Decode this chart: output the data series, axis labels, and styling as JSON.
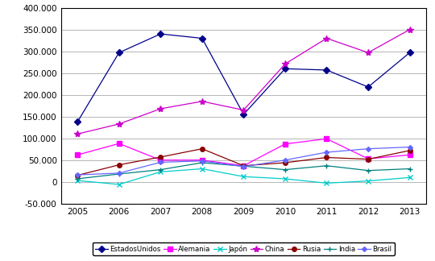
{
  "years": [
    2005,
    2006,
    2007,
    2008,
    2009,
    2010,
    2011,
    2012,
    2013
  ],
  "series": [
    {
      "name": "EstadosUnidos",
      "values": [
        138000,
        297000,
        340000,
        330000,
        155000,
        260000,
        257000,
        218000,
        297000
      ],
      "color": "#00008B",
      "marker": "D",
      "markersize": 4
    },
    {
      "name": "Alemania",
      "values": [
        62000,
        88000,
        50000,
        50000,
        37000,
        87000,
        99000,
        53000,
        62000
      ],
      "color": "#FF00FF",
      "marker": "s",
      "markersize": 4
    },
    {
      "name": "Japón",
      "values": [
        3000,
        -6000,
        23000,
        30000,
        12000,
        7000,
        -3000,
        2000,
        10000
      ],
      "color": "#00CCCC",
      "marker": "x",
      "markersize": 5
    },
    {
      "name": "China",
      "values": [
        110000,
        133000,
        168000,
        185000,
        165000,
        271000,
        330000,
        297000,
        350000
      ],
      "color": "#CC00CC",
      "marker": "*",
      "markersize": 6
    },
    {
      "name": "Rusia",
      "values": [
        15000,
        39000,
        57000,
        76000,
        37000,
        44000,
        56000,
        52000,
        72000
      ],
      "color": "#8B0000",
      "marker": "o",
      "markersize": 4
    },
    {
      "name": "India",
      "values": [
        7000,
        18000,
        28000,
        44000,
        36000,
        28000,
        37000,
        26000,
        30000
      ],
      "color": "#008080",
      "marker": "+",
      "markersize": 5
    },
    {
      "name": "Brasil",
      "values": [
        16000,
        20000,
        45000,
        48000,
        35000,
        50000,
        68000,
        76000,
        80000
      ],
      "color": "#6666FF",
      "marker": "D",
      "markersize": 3
    }
  ],
  "ylim": [
    -50000,
    400000
  ],
  "yticks": [
    -50000,
    0,
    50000,
    100000,
    150000,
    200000,
    250000,
    300000,
    350000,
    400000
  ],
  "background_color": "#FFFFFF",
  "grid_color": "#999999"
}
